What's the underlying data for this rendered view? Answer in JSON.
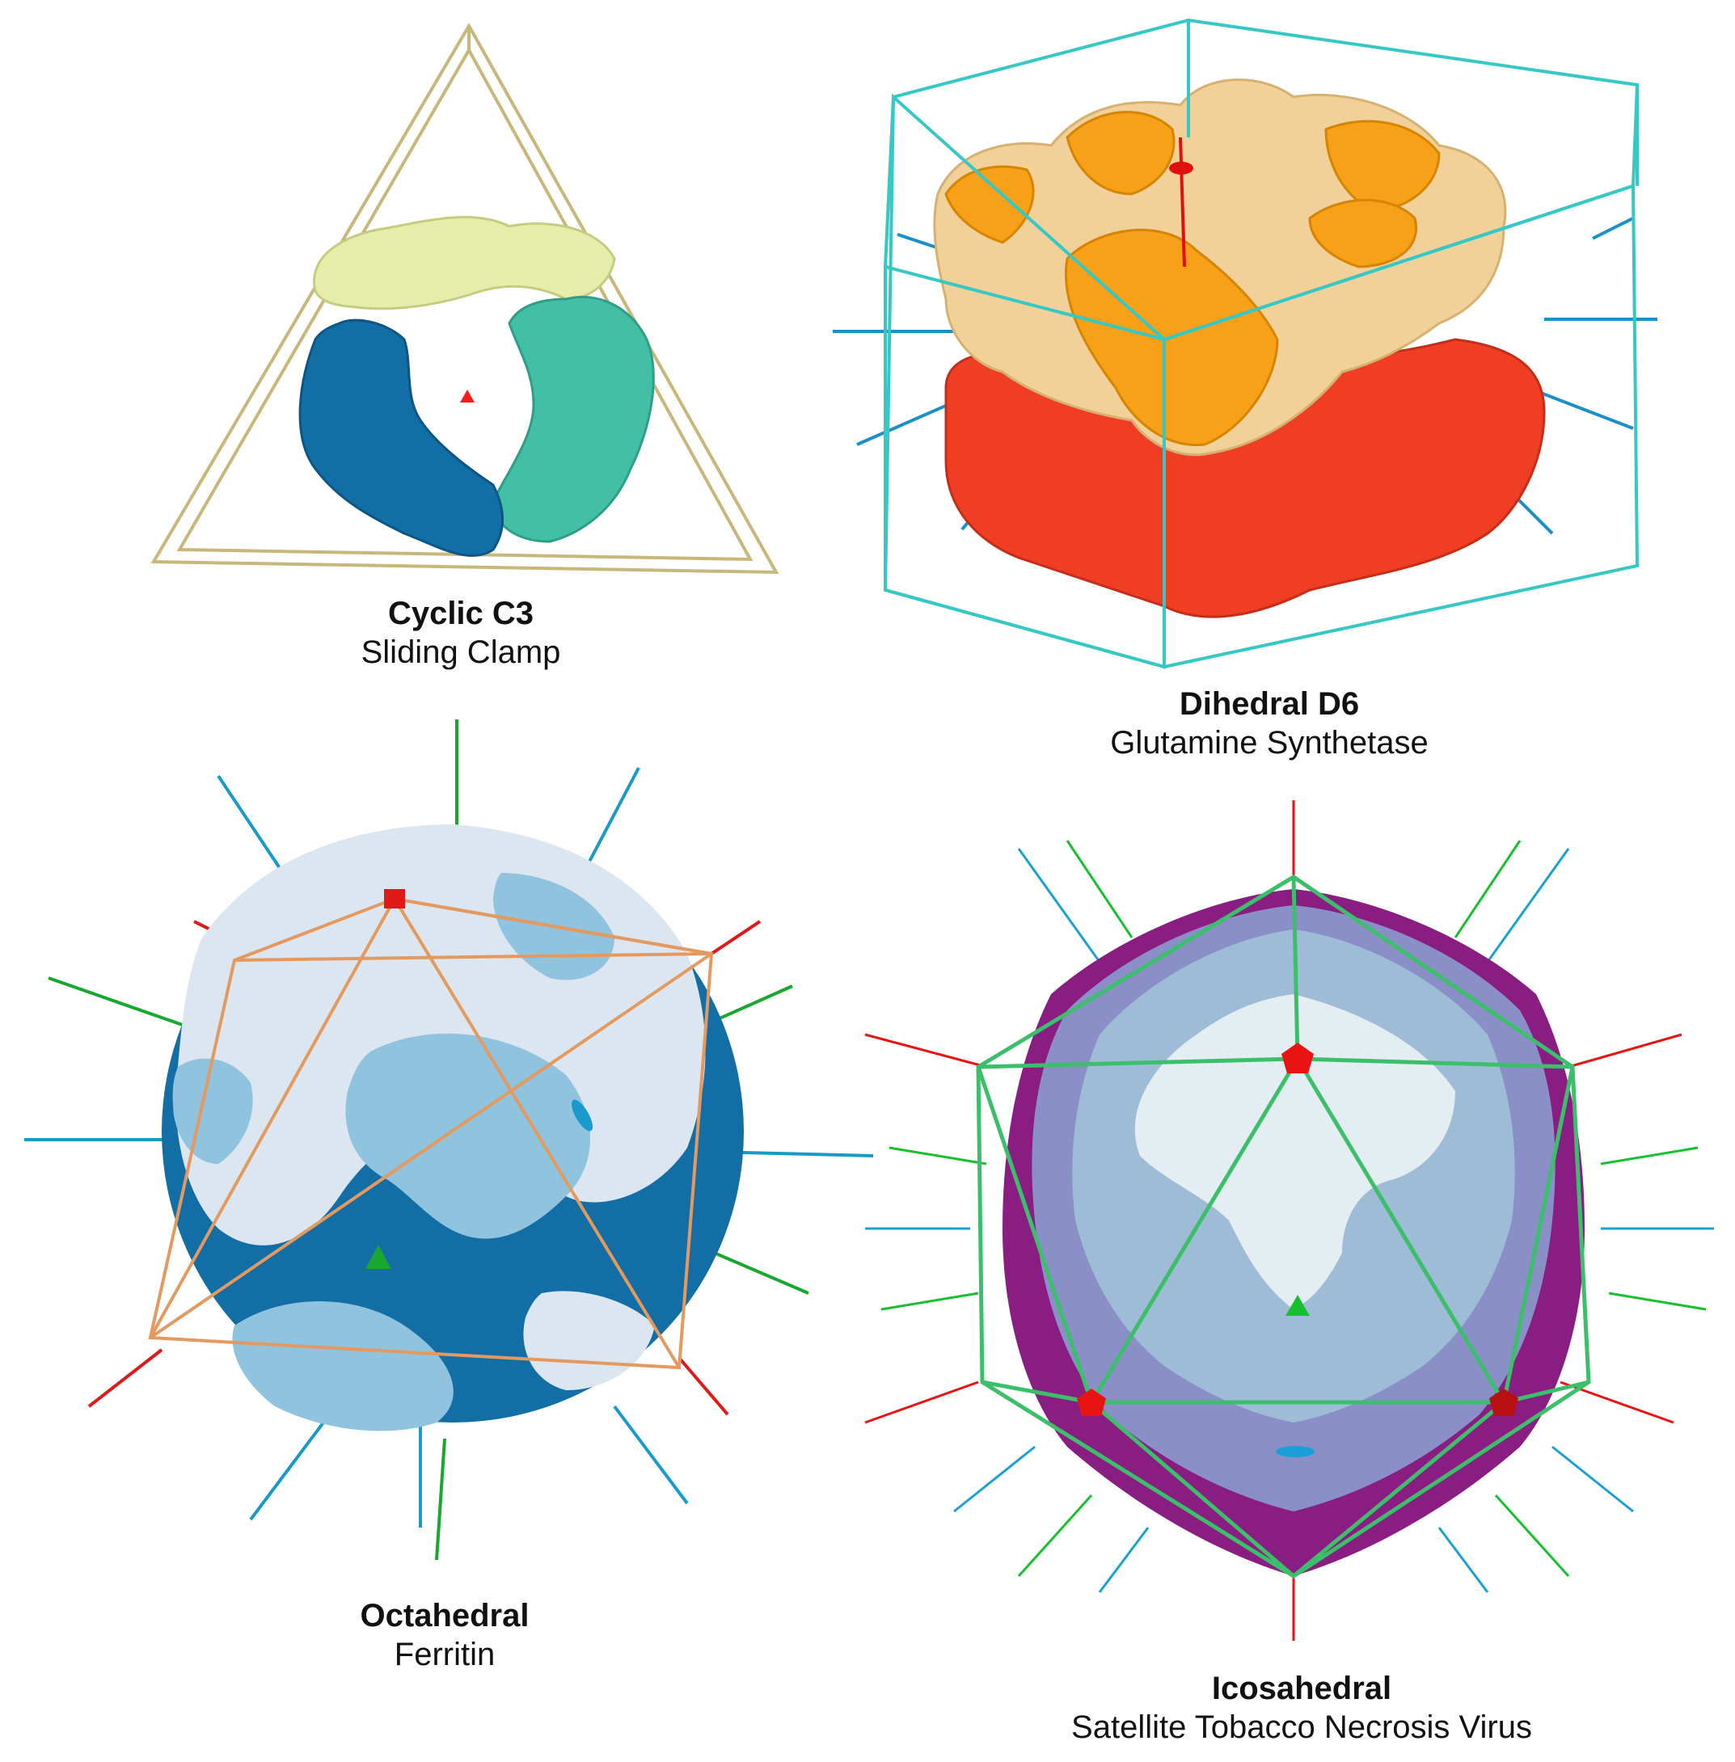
{
  "panels": [
    {
      "symmetry": "Cyclic C3",
      "protein": "Sliding Clamp",
      "frame_shape": "tetrahedron",
      "colors": {
        "frame": "#c8b77a",
        "subunit_a": "#e6edaa",
        "subunit_b": "#43bfa6",
        "subunit_c": "#126fa5",
        "axis": "#ff1a1a"
      }
    },
    {
      "symmetry": "Dihedral D6",
      "protein": "Glutamine Synthetase",
      "frame_shape": "hexagonal-prism",
      "colors": {
        "frame": "#35c8c4",
        "ring_top_a": "#f7a018",
        "ring_top_b": "#f2d09a",
        "ring_bottom": "#ef3e24",
        "axis_main": "#e01010",
        "axis_2fold": "#1a8fc9"
      }
    },
    {
      "symmetry": "Octahedral",
      "protein": "Ferritin",
      "frame_shape": "octahedron",
      "colors": {
        "frame": "#e49a5e",
        "light": "#dbe6f0",
        "mid": "#8fc3de",
        "dark": "#136ea6",
        "axis_4fold": "#e01818",
        "axis_3fold": "#18a830",
        "axis_2fold": "#1a9acb"
      }
    },
    {
      "symmetry": "Icosahedral",
      "protein": "Satellite Tobacco Necrosis Virus",
      "frame_shape": "icosahedron",
      "colors": {
        "frame": "#3cbf6a",
        "light": "#e4edf2",
        "mid": "#9fbcd6",
        "purple_light": "#8a8fc8",
        "purple_dark": "#8a1d82",
        "axis_5fold": "#e81414",
        "axis_3fold": "#18c030",
        "axis_2fold": "#1aa0d6"
      }
    }
  ]
}
